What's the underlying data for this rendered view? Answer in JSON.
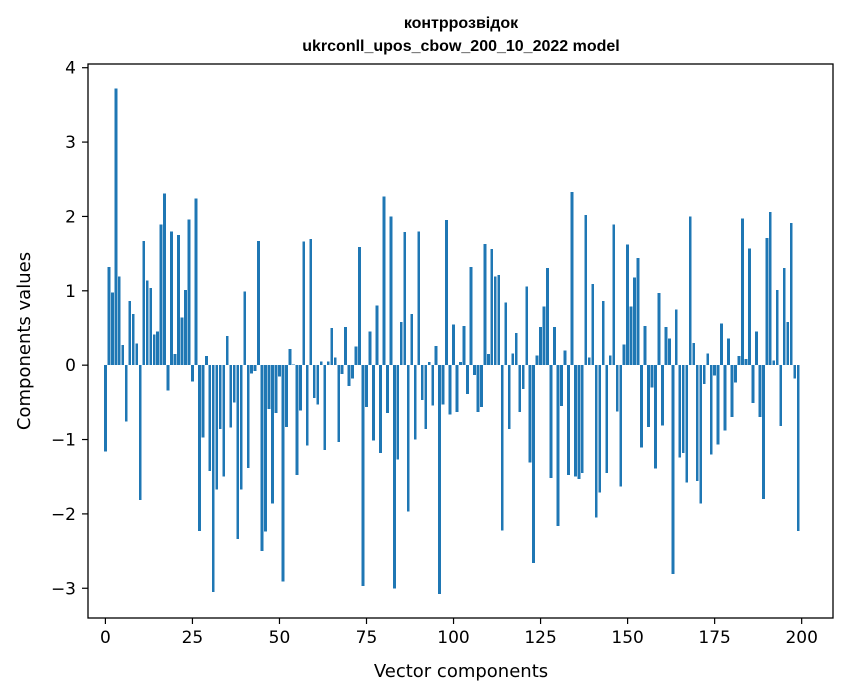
{
  "chart_data": {
    "type": "bar",
    "title": "контррозвідок",
    "subtitle": "ukrconll_upos_cbow_200_10_2022 model",
    "xlabel": "Vector components",
    "ylabel": "Components values",
    "xlim": [
      -5,
      209
    ],
    "ylim": [
      -3.4,
      4.05
    ],
    "xticks": [
      0,
      25,
      50,
      75,
      100,
      125,
      150,
      175,
      200
    ],
    "yticks": [
      -3,
      -2,
      -1,
      0,
      1,
      2,
      3,
      4
    ],
    "grid": false,
    "bar_color": "#1f77b4",
    "values": [
      -1.16,
      1.32,
      0.98,
      3.72,
      1.19,
      0.27,
      -0.76,
      0.86,
      0.69,
      0.29,
      -1.81,
      1.67,
      1.14,
      1.04,
      0.41,
      0.45,
      1.89,
      2.31,
      -0.34,
      1.8,
      0.15,
      1.75,
      0.64,
      1.01,
      1.96,
      -0.22,
      2.24,
      -2.23,
      -0.97,
      0.12,
      -1.42,
      -3.05,
      -1.67,
      -0.86,
      -1.5,
      0.39,
      -0.84,
      -0.5,
      -2.34,
      -1.67,
      0.99,
      -1.38,
      -0.11,
      -0.08,
      1.67,
      -2.5,
      -2.24,
      -0.59,
      -1.86,
      -0.64,
      -0.15,
      -2.91,
      -0.83,
      0.22,
      0.01,
      -1.48,
      -0.61,
      1.66,
      -1.08,
      1.7,
      -0.44,
      -0.53,
      0.05,
      -1.14,
      0.05,
      0.5,
      0.1,
      -1.03,
      -0.12,
      0.51,
      -0.28,
      -0.18,
      0.25,
      1.59,
      -2.97,
      -0.56,
      0.45,
      -1.01,
      0.8,
      -1.18,
      2.27,
      -0.64,
      2.0,
      -3.0,
      -1.27,
      0.58,
      1.79,
      -1.97,
      0.69,
      -1.0,
      1.8,
      -0.47,
      -0.86,
      0.04,
      -0.54,
      0.26,
      -3.08,
      -0.53,
      1.95,
      -0.66,
      0.55,
      -0.63,
      0.04,
      0.53,
      -0.39,
      1.32,
      -0.13,
      -0.63,
      -0.56,
      1.63,
      0.15,
      1.56,
      1.19,
      1.21,
      -2.22,
      0.84,
      -0.86,
      0.16,
      0.43,
      -0.63,
      -0.32,
      1.06,
      -1.31,
      -2.66,
      0.13,
      0.51,
      0.79,
      1.31,
      -1.52,
      0.51,
      -2.16,
      -0.55,
      0.2,
      -1.48,
      2.33,
      -1.5,
      -1.53,
      -1.45,
      2.02,
      0.1,
      1.09,
      -2.05,
      -1.71,
      0.86,
      -1.45,
      0.13,
      1.89,
      -0.62,
      -1.63,
      0.28,
      1.62,
      0.79,
      1.18,
      1.44,
      -1.11,
      0.53,
      -0.83,
      -0.3,
      -1.39,
      0.97,
      -0.81,
      0.51,
      0.36,
      -2.81,
      0.75,
      -1.24,
      -1.18,
      -1.58,
      2.0,
      0.3,
      -1.56,
      -1.86,
      -0.25,
      0.16,
      -1.2,
      -0.14,
      -1.07,
      0.56,
      -0.88,
      0.36,
      -0.7,
      -0.23,
      0.12,
      1.97,
      0.08,
      1.57,
      -0.51,
      0.45,
      -0.7,
      -1.8,
      1.71,
      2.06,
      0.06,
      1.01,
      -0.82,
      1.31,
      0.58,
      1.91,
      -0.18,
      -2.23
    ]
  }
}
